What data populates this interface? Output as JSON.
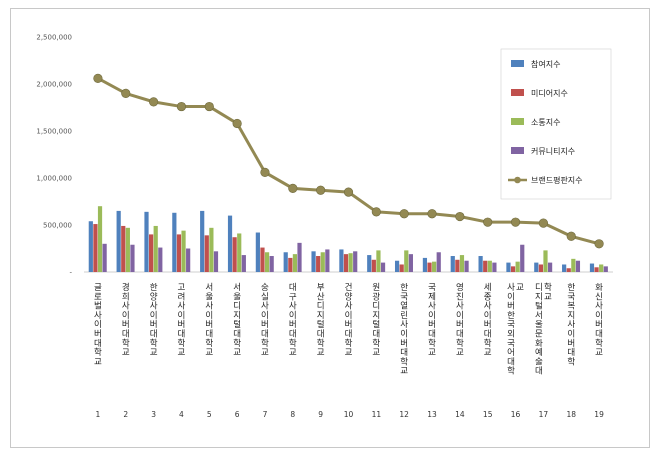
{
  "chart_data": {
    "type": "bar",
    "title": "",
    "xlabel": "",
    "ylabel": "",
    "ylim": [
      0,
      2500000
    ],
    "yticks": [
      "-",
      "500,000",
      "1,000,000",
      "1,500,000",
      "2,000,000",
      "2,500,000"
    ],
    "grid": false,
    "legend_position": "top-right",
    "x": [
      "1",
      "2",
      "3",
      "4",
      "5",
      "6",
      "7",
      "8",
      "9",
      "10",
      "11",
      "12",
      "13",
      "14",
      "15",
      "16",
      "17",
      "18",
      "19"
    ],
    "categories": [
      "글로벌사이버대학교",
      "경희사이버대학교",
      "한양사이버대학교",
      "고려사이버대학교",
      "서울사이버대학교",
      "서울디지털대학교",
      "숭실사이버대학교",
      "대구사이버대학교",
      "부산디지털대학교",
      "건양사이버대학교",
      "원광디지털대학교",
      "한국열린사이버대학교",
      "국제사이버대학교",
      "영진사이버대학교",
      "세종사이버대학교",
      "사이버한국외국어대학교",
      "디지털서울문화예술대학교",
      "한국복지사이버대학",
      "화신사이버대학교"
    ],
    "series": [
      {
        "name": "참여지수",
        "type": "bar",
        "color": "#4f81bd",
        "values": [
          540000,
          650000,
          640000,
          630000,
          650000,
          600000,
          420000,
          210000,
          220000,
          240000,
          180000,
          120000,
          150000,
          170000,
          170000,
          100000,
          100000,
          80000,
          90000
        ]
      },
      {
        "name": "미디어지수",
        "type": "bar",
        "color": "#c0504d",
        "values": [
          510000,
          490000,
          400000,
          400000,
          390000,
          370000,
          260000,
          150000,
          170000,
          190000,
          130000,
          80000,
          100000,
          130000,
          120000,
          60000,
          80000,
          40000,
          50000
        ]
      },
      {
        "name": "소통지수",
        "type": "bar",
        "color": "#9bbb59",
        "values": [
          700000,
          470000,
          490000,
          440000,
          470000,
          410000,
          210000,
          190000,
          210000,
          200000,
          230000,
          230000,
          110000,
          180000,
          120000,
          110000,
          230000,
          140000,
          80000
        ]
      },
      {
        "name": "커뮤니티지수",
        "type": "bar",
        "color": "#8064a2",
        "values": [
          300000,
          290000,
          260000,
          250000,
          220000,
          180000,
          170000,
          310000,
          240000,
          220000,
          100000,
          190000,
          210000,
          120000,
          100000,
          290000,
          100000,
          120000,
          60000
        ]
      },
      {
        "name": "브랜드평판지수",
        "type": "line",
        "color": "#938953",
        "values": [
          2060000,
          1900000,
          1810000,
          1760000,
          1760000,
          1580000,
          1060000,
          890000,
          870000,
          850000,
          640000,
          620000,
          620000,
          590000,
          530000,
          530000,
          520000,
          380000,
          300000
        ]
      }
    ]
  }
}
